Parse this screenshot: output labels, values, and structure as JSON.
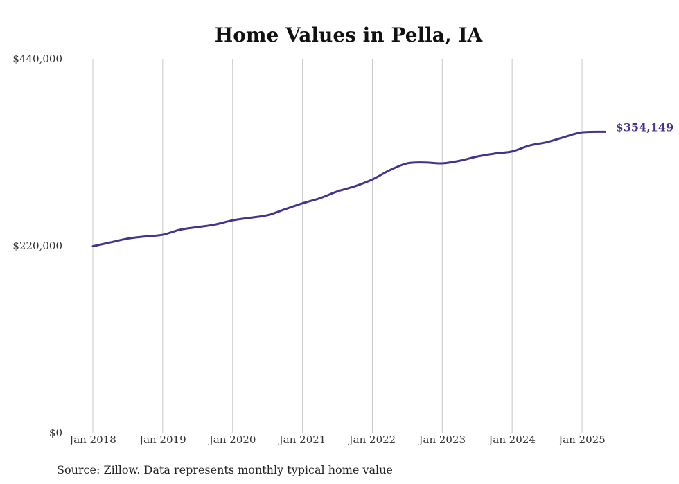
{
  "chart_data": {
    "type": "line",
    "title": "Home Values in Pella, IA",
    "source": "Source: Zillow. Data represents monthly typical home value",
    "xlabel": "",
    "ylabel": "",
    "ylim": [
      0,
      440000
    ],
    "xlim": [
      "2018-01",
      "2025-05"
    ],
    "y_ticks": [
      {
        "value": 0,
        "label": "$0"
      },
      {
        "value": 220000,
        "label": "$220,000"
      },
      {
        "value": 440000,
        "label": "$440,000"
      }
    ],
    "x_ticks": [
      {
        "value": "2018-01",
        "label": "Jan 2018"
      },
      {
        "value": "2019-01",
        "label": "Jan 2019"
      },
      {
        "value": "2020-01",
        "label": "Jan 2020"
      },
      {
        "value": "2021-01",
        "label": "Jan 2021"
      },
      {
        "value": "2022-01",
        "label": "Jan 2022"
      },
      {
        "value": "2023-01",
        "label": "Jan 2023"
      },
      {
        "value": "2024-01",
        "label": "Jan 2024"
      },
      {
        "value": "2025-01",
        "label": "Jan 2025"
      }
    ],
    "grid": {
      "vertical": true,
      "horizontal": false
    },
    "series": [
      {
        "color": "#3f3590",
        "end_label": "$354,149",
        "points": [
          {
            "x": "2018-01",
            "y": 219500
          },
          {
            "x": "2018-04",
            "y": 224000
          },
          {
            "x": "2018-07",
            "y": 228500
          },
          {
            "x": "2018-10",
            "y": 231000
          },
          {
            "x": "2019-01",
            "y": 233000
          },
          {
            "x": "2019-04",
            "y": 239000
          },
          {
            "x": "2019-07",
            "y": 242000
          },
          {
            "x": "2019-10",
            "y": 245000
          },
          {
            "x": "2020-01",
            "y": 250000
          },
          {
            "x": "2020-04",
            "y": 253000
          },
          {
            "x": "2020-07",
            "y": 256000
          },
          {
            "x": "2020-10",
            "y": 263000
          },
          {
            "x": "2021-01",
            "y": 270000
          },
          {
            "x": "2021-04",
            "y": 276000
          },
          {
            "x": "2021-07",
            "y": 284000
          },
          {
            "x": "2021-10",
            "y": 290000
          },
          {
            "x": "2022-01",
            "y": 298000
          },
          {
            "x": "2022-04",
            "y": 309000
          },
          {
            "x": "2022-07",
            "y": 317000
          },
          {
            "x": "2022-10",
            "y": 318000
          },
          {
            "x": "2023-01",
            "y": 317000
          },
          {
            "x": "2023-04",
            "y": 320000
          },
          {
            "x": "2023-07",
            "y": 325000
          },
          {
            "x": "2023-10",
            "y": 328500
          },
          {
            "x": "2024-01",
            "y": 331000
          },
          {
            "x": "2024-04",
            "y": 338000
          },
          {
            "x": "2024-07",
            "y": 342000
          },
          {
            "x": "2024-10",
            "y": 348000
          },
          {
            "x": "2025-01",
            "y": 353500
          },
          {
            "x": "2025-05",
            "y": 354149
          }
        ]
      }
    ]
  }
}
